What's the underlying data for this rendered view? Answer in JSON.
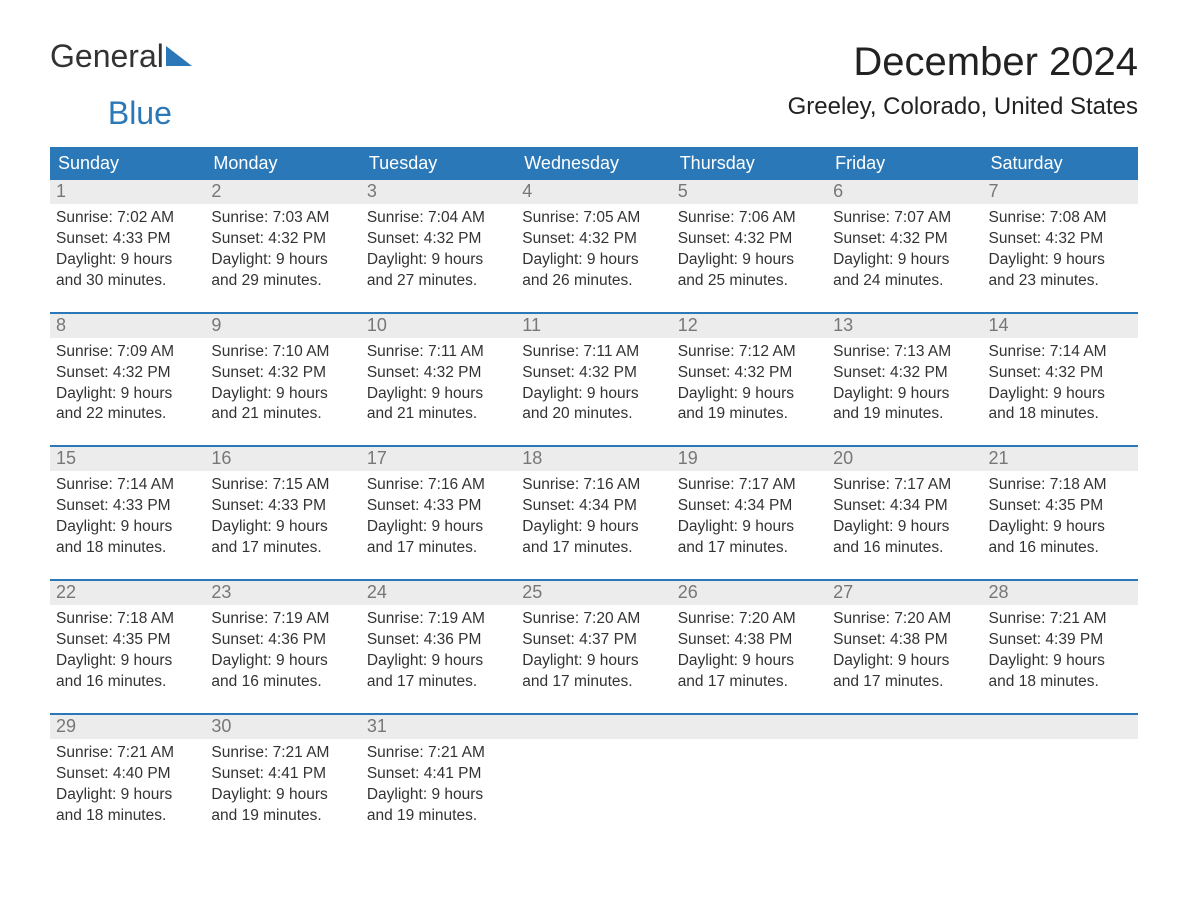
{
  "logo": {
    "word1": "General",
    "word2": "Blue"
  },
  "title": "December 2024",
  "location": "Greeley, Colorado, United States",
  "colors": {
    "header_bg": "#2b78b8",
    "header_text": "#ffffff",
    "daynum_bg": "#ececec",
    "daynum_text": "#777777",
    "body_text": "#333333",
    "background": "#ffffff",
    "week_border": "#2b78b8"
  },
  "typography": {
    "title_fontsize": 40,
    "location_fontsize": 24,
    "header_fontsize": 18,
    "cell_fontsize": 15.5,
    "logo_fontsize": 32
  },
  "day_names": [
    "Sunday",
    "Monday",
    "Tuesday",
    "Wednesday",
    "Thursday",
    "Friday",
    "Saturday"
  ],
  "labels": {
    "sunrise": "Sunrise:",
    "sunset": "Sunset:",
    "daylight": "Daylight:"
  },
  "weeks": [
    [
      {
        "d": "1",
        "sr": "7:02 AM",
        "ss": "4:33 PM",
        "dl": "9 hours and 30 minutes."
      },
      {
        "d": "2",
        "sr": "7:03 AM",
        "ss": "4:32 PM",
        "dl": "9 hours and 29 minutes."
      },
      {
        "d": "3",
        "sr": "7:04 AM",
        "ss": "4:32 PM",
        "dl": "9 hours and 27 minutes."
      },
      {
        "d": "4",
        "sr": "7:05 AM",
        "ss": "4:32 PM",
        "dl": "9 hours and 26 minutes."
      },
      {
        "d": "5",
        "sr": "7:06 AM",
        "ss": "4:32 PM",
        "dl": "9 hours and 25 minutes."
      },
      {
        "d": "6",
        "sr": "7:07 AM",
        "ss": "4:32 PM",
        "dl": "9 hours and 24 minutes."
      },
      {
        "d": "7",
        "sr": "7:08 AM",
        "ss": "4:32 PM",
        "dl": "9 hours and 23 minutes."
      }
    ],
    [
      {
        "d": "8",
        "sr": "7:09 AM",
        "ss": "4:32 PM",
        "dl": "9 hours and 22 minutes."
      },
      {
        "d": "9",
        "sr": "7:10 AM",
        "ss": "4:32 PM",
        "dl": "9 hours and 21 minutes."
      },
      {
        "d": "10",
        "sr": "7:11 AM",
        "ss": "4:32 PM",
        "dl": "9 hours and 21 minutes."
      },
      {
        "d": "11",
        "sr": "7:11 AM",
        "ss": "4:32 PM",
        "dl": "9 hours and 20 minutes."
      },
      {
        "d": "12",
        "sr": "7:12 AM",
        "ss": "4:32 PM",
        "dl": "9 hours and 19 minutes."
      },
      {
        "d": "13",
        "sr": "7:13 AM",
        "ss": "4:32 PM",
        "dl": "9 hours and 19 minutes."
      },
      {
        "d": "14",
        "sr": "7:14 AM",
        "ss": "4:32 PM",
        "dl": "9 hours and 18 minutes."
      }
    ],
    [
      {
        "d": "15",
        "sr": "7:14 AM",
        "ss": "4:33 PM",
        "dl": "9 hours and 18 minutes."
      },
      {
        "d": "16",
        "sr": "7:15 AM",
        "ss": "4:33 PM",
        "dl": "9 hours and 17 minutes."
      },
      {
        "d": "17",
        "sr": "7:16 AM",
        "ss": "4:33 PM",
        "dl": "9 hours and 17 minutes."
      },
      {
        "d": "18",
        "sr": "7:16 AM",
        "ss": "4:34 PM",
        "dl": "9 hours and 17 minutes."
      },
      {
        "d": "19",
        "sr": "7:17 AM",
        "ss": "4:34 PM",
        "dl": "9 hours and 17 minutes."
      },
      {
        "d": "20",
        "sr": "7:17 AM",
        "ss": "4:34 PM",
        "dl": "9 hours and 16 minutes."
      },
      {
        "d": "21",
        "sr": "7:18 AM",
        "ss": "4:35 PM",
        "dl": "9 hours and 16 minutes."
      }
    ],
    [
      {
        "d": "22",
        "sr": "7:18 AM",
        "ss": "4:35 PM",
        "dl": "9 hours and 16 minutes."
      },
      {
        "d": "23",
        "sr": "7:19 AM",
        "ss": "4:36 PM",
        "dl": "9 hours and 16 minutes."
      },
      {
        "d": "24",
        "sr": "7:19 AM",
        "ss": "4:36 PM",
        "dl": "9 hours and 17 minutes."
      },
      {
        "d": "25",
        "sr": "7:20 AM",
        "ss": "4:37 PM",
        "dl": "9 hours and 17 minutes."
      },
      {
        "d": "26",
        "sr": "7:20 AM",
        "ss": "4:38 PM",
        "dl": "9 hours and 17 minutes."
      },
      {
        "d": "27",
        "sr": "7:20 AM",
        "ss": "4:38 PM",
        "dl": "9 hours and 17 minutes."
      },
      {
        "d": "28",
        "sr": "7:21 AM",
        "ss": "4:39 PM",
        "dl": "9 hours and 18 minutes."
      }
    ],
    [
      {
        "d": "29",
        "sr": "7:21 AM",
        "ss": "4:40 PM",
        "dl": "9 hours and 18 minutes."
      },
      {
        "d": "30",
        "sr": "7:21 AM",
        "ss": "4:41 PM",
        "dl": "9 hours and 19 minutes."
      },
      {
        "d": "31",
        "sr": "7:21 AM",
        "ss": "4:41 PM",
        "dl": "9 hours and 19 minutes."
      },
      null,
      null,
      null,
      null
    ]
  ]
}
